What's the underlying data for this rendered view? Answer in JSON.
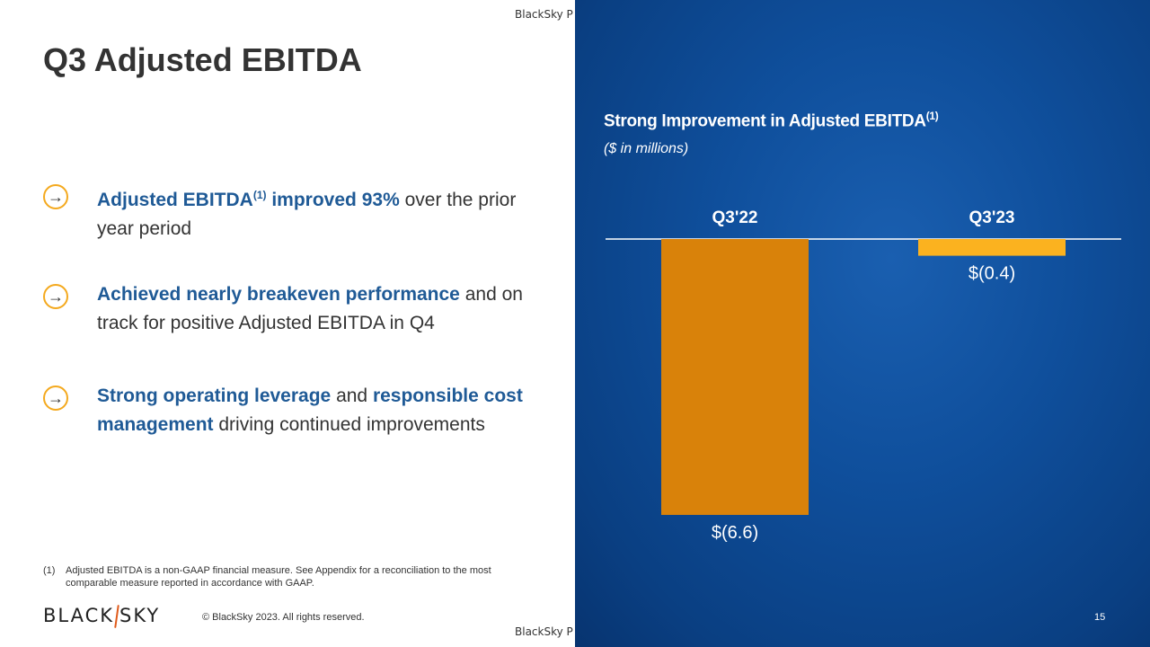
{
  "watermark": "BlackSky P",
  "page_title": "Q3 Adjusted EBITDA",
  "bullets": [
    {
      "icon": "arrow-right-icon",
      "parts": [
        {
          "text": "Adjusted EBITDA",
          "hl": true
        },
        {
          "text": "(1)",
          "hl": true,
          "sup": true
        },
        {
          "text": " improved 93%",
          "hl": true
        },
        {
          "text": " over the prior year period",
          "hl": false
        }
      ]
    },
    {
      "icon": "arrow-right-icon",
      "parts": [
        {
          "text": "Achieved nearly breakeven performance",
          "hl": true
        },
        {
          "text": " and on track for positive Adjusted EBITDA in Q4",
          "hl": false
        }
      ]
    },
    {
      "icon": "arrow-right-icon",
      "parts": [
        {
          "text": "Strong operating leverage",
          "hl": true
        },
        {
          "text": " and ",
          "hl": false
        },
        {
          "text": "responsible cost management",
          "hl": true
        },
        {
          "text": " driving continued improvements",
          "hl": false
        }
      ]
    }
  ],
  "footnote": {
    "number": "(1)",
    "text": "Adjusted EBITDA is a non-GAAP financial measure. See Appendix for a reconciliation to the most comparable measure reported in accordance with GAAP."
  },
  "footer": {
    "logo_left": "BLACK",
    "logo_right": "SKY",
    "copyright": "© BlackSky 2023. All rights reserved.",
    "page_number": "15"
  },
  "chart_data": {
    "type": "bar",
    "title": "Strong Improvement in Adjusted EBITDA",
    "title_superscript": "(1)",
    "subtitle": "($ in millions)",
    "categories": [
      "Q3'22",
      "Q3'23"
    ],
    "values": [
      -6.6,
      -0.4
    ],
    "data_labels": [
      "$(6.6)",
      "$(0.4)"
    ],
    "colors": [
      "#d9820a",
      "#fbb21f"
    ],
    "ylim": [
      -6.6,
      0
    ],
    "grid": false,
    "legend": "none"
  },
  "colors": {
    "accent_blue": "#1f5a96",
    "accent_orange": "#f4a91e",
    "panel_blue": "#0f4f9c"
  }
}
